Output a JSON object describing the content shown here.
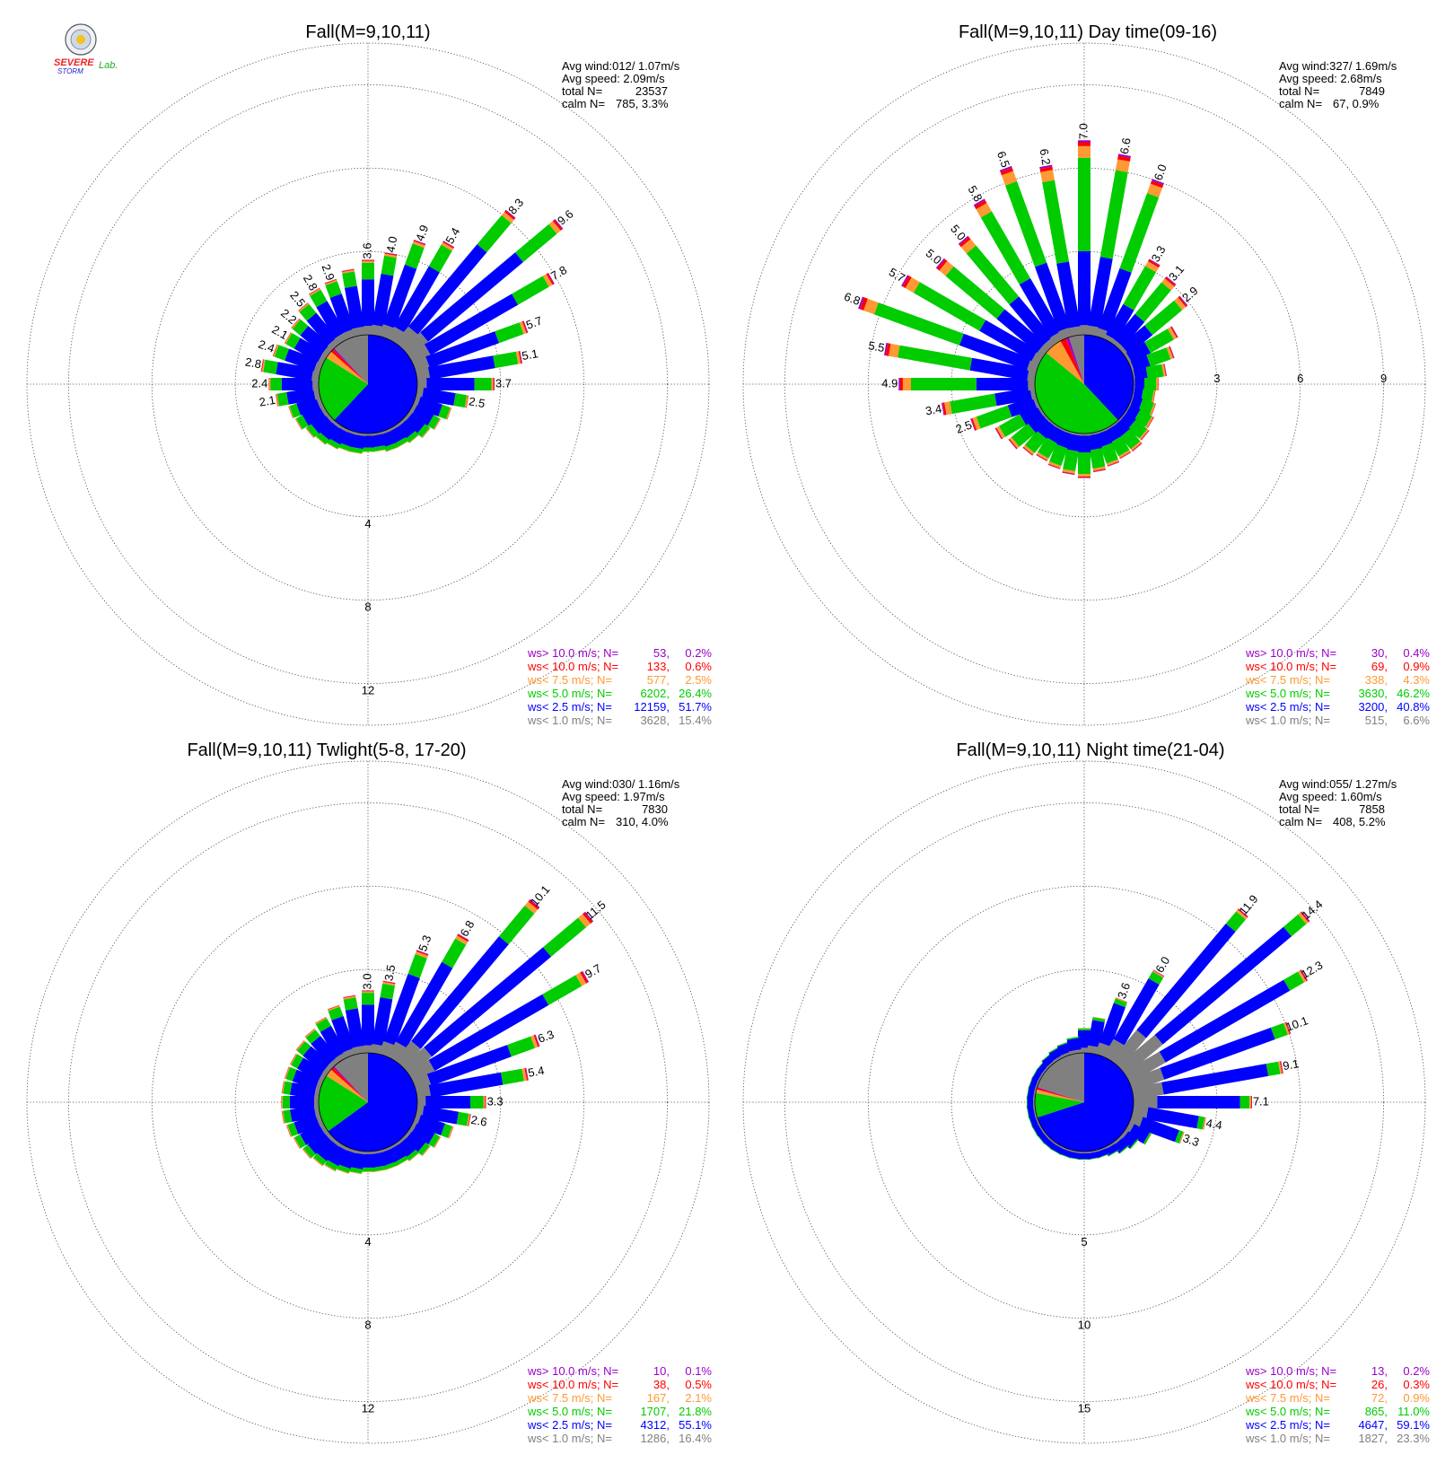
{
  "logo": {
    "text1": "SEVERE",
    "text2": "STORM",
    "text3": "Lab."
  },
  "legend_items": [
    {
      "key": "gt10",
      "label": "ws> 10.0 m/s; N=",
      "color": "#9b00c8"
    },
    {
      "key": "lt10",
      "label": "ws< 10.0 m/s; N=",
      "color": "#ff0000"
    },
    {
      "key": "lt75",
      "label": "ws<  7.5 m/s; N=",
      "color": "#ff9933"
    },
    {
      "key": "lt5",
      "label": "ws<  5.0 m/s; N=",
      "color": "#00cc00"
    },
    {
      "key": "lt25",
      "label": "ws<  2.5 m/s; N=",
      "color": "#0000ff"
    },
    {
      "key": "lt1",
      "label": "ws<  1.0 m/s; N=",
      "color": "#808080"
    }
  ],
  "chart_data": [
    {
      "type": "wind-rose",
      "title": "Fall(M=9,10,11)",
      "ring_labels": [
        "4",
        "8",
        "12"
      ],
      "rmax": 14,
      "stats": {
        "avg_wind_label": "Avg wind:012/ 1.07m/s",
        "avg_speed_label": "Avg speed: 2.09m/s",
        "total_label": "total N=",
        "total_value": "23537",
        "calm_label": "calm N=",
        "calm_value": "785,   3.3%"
      },
      "legend": [
        {
          "n": "53",
          "pct": "0.2%"
        },
        {
          "n": "133",
          "pct": "0.6%"
        },
        {
          "n": "577",
          "pct": "2.5%"
        },
        {
          "n": "6202",
          "pct": "26.4%"
        },
        {
          "n": "12159",
          "pct": "51.7%"
        },
        {
          "n": "3628",
          "pct": "15.4%"
        }
      ],
      "direction_totals_pct": [
        3.6,
        4.0,
        4.9,
        5.4,
        8.3,
        9.6,
        7.8,
        5.7,
        5.1,
        3.7,
        2.5,
        1.8,
        1.5,
        1.3,
        1.1,
        1.0,
        1.0,
        0.9,
        0.9,
        1.0,
        1.0,
        1.1,
        1.2,
        1.3,
        1.5,
        1.6,
        2.1,
        2.4,
        2.8,
        2.4,
        2.1,
        2.2,
        2.5,
        2.8,
        2.9,
        3.2
      ],
      "labeled_directions": [
        {
          "i": 0,
          "label": "3.6"
        },
        {
          "i": 1,
          "label": "4.0"
        },
        {
          "i": 2,
          "label": "4.9"
        },
        {
          "i": 3,
          "label": "5.4"
        },
        {
          "i": 4,
          "label": "8.3"
        },
        {
          "i": 5,
          "label": "9.6"
        },
        {
          "i": 6,
          "label": "7.8"
        },
        {
          "i": 7,
          "label": "5.7"
        },
        {
          "i": 8,
          "label": "5.1"
        },
        {
          "i": 9,
          "label": "3.7"
        },
        {
          "i": 10,
          "label": "2.5"
        },
        {
          "i": 26,
          "label": "2.1"
        },
        {
          "i": 27,
          "label": "2.4"
        },
        {
          "i": 28,
          "label": "2.8"
        },
        {
          "i": 29,
          "label": "2.4"
        },
        {
          "i": 30,
          "label": "2.1"
        },
        {
          "i": 31,
          "label": "2.2"
        },
        {
          "i": 32,
          "label": "2.5"
        },
        {
          "i": 33,
          "label": "2.8"
        },
        {
          "i": 34,
          "label": "2.9"
        }
      ],
      "speed_class_mix": [
        0.12,
        0.62,
        0.22,
        0.025,
        0.01,
        0.005
      ]
    },
    {
      "type": "wind-rose",
      "title": "Fall(M=9,10,11) Day time(09-16)",
      "ring_labels": [
        "3",
        "6",
        "9"
      ],
      "rmax": 10.5,
      "stats": {
        "avg_wind_label": "Avg wind:327/ 1.69m/s",
        "avg_speed_label": "Avg speed: 2.68m/s",
        "total_label": "total N=",
        "total_value": "7849",
        "calm_label": "calm N=",
        "calm_value": "67,   0.9%"
      },
      "legend": [
        {
          "n": "30",
          "pct": "0.4%"
        },
        {
          "n": "69",
          "pct": "0.9%"
        },
        {
          "n": "338",
          "pct": "4.3%"
        },
        {
          "n": "3630",
          "pct": "46.2%"
        },
        {
          "n": "3200",
          "pct": "40.8%"
        },
        {
          "n": "515",
          "pct": "6.6%"
        }
      ],
      "direction_totals_pct": [
        7.0,
        6.6,
        6.0,
        3.3,
        3.1,
        2.9,
        2.0,
        1.6,
        1.2,
        0.9,
        0.8,
        0.9,
        1.0,
        1.1,
        1.2,
        1.2,
        1.3,
        1.4,
        1.6,
        1.5,
        1.4,
        1.3,
        1.4,
        1.6,
        1.8,
        2.5,
        3.4,
        4.9,
        5.5,
        6.8,
        5.7,
        5.0,
        5.0,
        5.8,
        6.5,
        6.2
      ],
      "labeled_directions": [
        {
          "i": 0,
          "label": "7.0"
        },
        {
          "i": 1,
          "label": "6.6"
        },
        {
          "i": 2,
          "label": "6.0"
        },
        {
          "i": 3,
          "label": "3.3"
        },
        {
          "i": 4,
          "label": "3.1"
        },
        {
          "i": 5,
          "label": "2.9"
        },
        {
          "i": 25,
          "label": "2.5"
        },
        {
          "i": 26,
          "label": "3.4"
        },
        {
          "i": 27,
          "label": "4.9"
        },
        {
          "i": 28,
          "label": "5.5"
        },
        {
          "i": 29,
          "label": "6.8"
        },
        {
          "i": 30,
          "label": "5.7"
        },
        {
          "i": 31,
          "label": "5.0"
        },
        {
          "i": 32,
          "label": "5.0"
        },
        {
          "i": 33,
          "label": "5.8"
        },
        {
          "i": 34,
          "label": "6.5"
        },
        {
          "i": 35,
          "label": "6.2"
        }
      ],
      "speed_class_mix": [
        0.05,
        0.38,
        0.48,
        0.06,
        0.02,
        0.01
      ]
    },
    {
      "type": "wind-rose",
      "title": "Fall(M=9,10,11) Twlight(5-8, 17-20)",
      "ring_labels": [
        "4",
        "8",
        "12"
      ],
      "rmax": 14,
      "stats": {
        "avg_wind_label": "Avg wind:030/ 1.16m/s",
        "avg_speed_label": "Avg speed: 1.97m/s",
        "total_label": "total N=",
        "total_value": "7830",
        "calm_label": "calm N=",
        "calm_value": "310,   4.0%"
      },
      "legend": [
        {
          "n": "10",
          "pct": "0.1%"
        },
        {
          "n": "38",
          "pct": "0.5%"
        },
        {
          "n": "167",
          "pct": "2.1%"
        },
        {
          "n": "1707",
          "pct": "21.8%"
        },
        {
          "n": "4312",
          "pct": "55.1%"
        },
        {
          "n": "1286",
          "pct": "16.4%"
        }
      ],
      "direction_totals_pct": [
        3.0,
        3.5,
        5.3,
        6.8,
        10.1,
        11.5,
        9.7,
        6.3,
        5.4,
        3.3,
        2.6,
        1.9,
        1.5,
        1.3,
        1.1,
        1.0,
        1.0,
        1.0,
        1.0,
        1.1,
        1.2,
        1.3,
        1.4,
        1.5,
        1.6,
        1.7,
        1.8,
        1.8,
        1.8,
        1.8,
        1.8,
        1.9,
        2.0,
        2.2,
        2.5,
        2.8
      ],
      "labeled_directions": [
        {
          "i": 0,
          "label": "3.0"
        },
        {
          "i": 1,
          "label": "3.5"
        },
        {
          "i": 2,
          "label": "5.3"
        },
        {
          "i": 3,
          "label": "6.8"
        },
        {
          "i": 4,
          "label": "10.1"
        },
        {
          "i": 5,
          "label": "11.5"
        },
        {
          "i": 6,
          "label": "9.7"
        },
        {
          "i": 7,
          "label": "6.3"
        },
        {
          "i": 8,
          "label": "5.4"
        },
        {
          "i": 9,
          "label": "3.3"
        },
        {
          "i": 10,
          "label": "2.6"
        }
      ],
      "speed_class_mix": [
        0.12,
        0.65,
        0.19,
        0.025,
        0.01,
        0.005
      ]
    },
    {
      "type": "wind-rose",
      "title": "Fall(M=9,10,11) Night time(21-04)",
      "ring_labels": [
        "5",
        "10",
        "15"
      ],
      "rmax": 17.5,
      "stats": {
        "avg_wind_label": "Avg wind:055/ 1.27m/s",
        "avg_speed_label": "Avg speed: 1.60m/s",
        "total_label": "total N=",
        "total_value": "7858",
        "calm_label": "calm N=",
        "calm_value": "408,   5.2%"
      },
      "legend": [
        {
          "n": "13",
          "pct": "0.2%"
        },
        {
          "n": "26",
          "pct": "0.3%"
        },
        {
          "n": "72",
          "pct": "0.9%"
        },
        {
          "n": "865",
          "pct": "11.0%"
        },
        {
          "n": "4647",
          "pct": "59.1%"
        },
        {
          "n": "1827",
          "pct": "23.3%"
        }
      ],
      "direction_totals_pct": [
        1.5,
        2.2,
        3.6,
        6.0,
        11.9,
        14.4,
        12.3,
        10.1,
        9.1,
        7.1,
        4.4,
        3.3,
        1.5,
        1.0,
        0.8,
        0.6,
        0.5,
        0.5,
        0.5,
        0.5,
        0.5,
        0.5,
        0.5,
        0.5,
        0.5,
        0.5,
        0.5,
        0.5,
        0.5,
        0.5,
        0.5,
        0.5,
        0.6,
        0.7,
        0.8,
        1.0
      ],
      "labeled_directions": [
        {
          "i": 2,
          "label": "3.6"
        },
        {
          "i": 3,
          "label": "6.0"
        },
        {
          "i": 4,
          "label": "11.9"
        },
        {
          "i": 5,
          "label": "14.4"
        },
        {
          "i": 6,
          "label": "12.3"
        },
        {
          "i": 7,
          "label": "10.1"
        },
        {
          "i": 8,
          "label": "9.1"
        },
        {
          "i": 9,
          "label": "7.1"
        },
        {
          "i": 10,
          "label": "4.4"
        },
        {
          "i": 11,
          "label": "3.3"
        }
      ],
      "speed_class_mix": [
        0.2,
        0.7,
        0.08,
        0.012,
        0.005,
        0.003
      ]
    }
  ]
}
